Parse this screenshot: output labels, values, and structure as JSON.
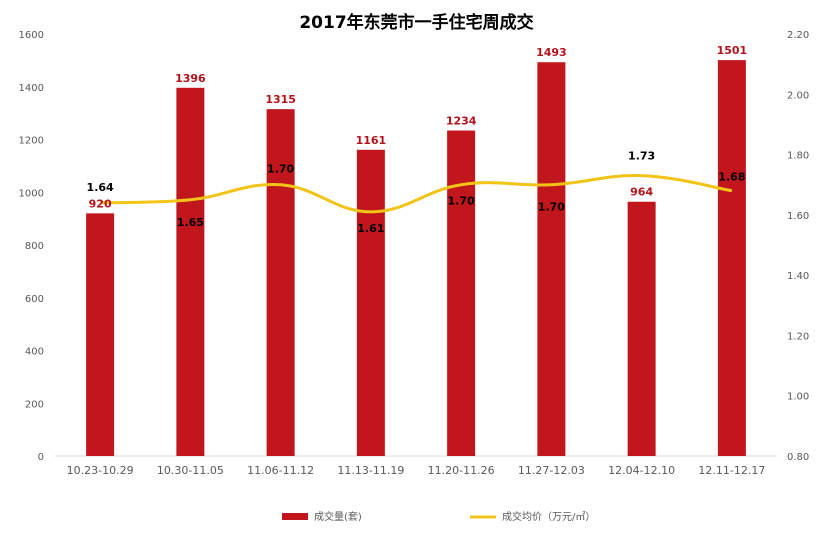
{
  "chart_data": {
    "type": "bar",
    "title": "2017年东莞市一手住宅周成交",
    "categories": [
      "10.23-10.29",
      "10.30-11.05",
      "11.06-11.12",
      "11.13-11.19",
      "11.20-11.26",
      "11.27-12.03",
      "12.04-12.10",
      "12.11-12.17"
    ],
    "series": [
      {
        "name": "成交量(套)",
        "type": "bar",
        "axis": "left",
        "color": "#c0161c",
        "values": [
          920,
          1396,
          1315,
          1161,
          1234,
          1493,
          964,
          1501
        ]
      },
      {
        "name": "成交均价（万元/㎡）",
        "type": "line",
        "axis": "right",
        "color": "#f2c418",
        "values": [
          1.64,
          1.65,
          1.7,
          1.61,
          1.7,
          1.7,
          1.73,
          1.68
        ]
      }
    ],
    "left_axis": {
      "ylim": [
        0,
        1600
      ],
      "ticks": [
        "0",
        "200",
        "400",
        "600",
        "800",
        "1000",
        "1200",
        "1400",
        "1600"
      ]
    },
    "right_axis": {
      "ylim": [
        0.8,
        2.2
      ],
      "ticks": [
        "0.80",
        "1.00",
        "1.20",
        "1.40",
        "1.60",
        "1.80",
        "2.00",
        "2.20"
      ]
    },
    "bar_labels": [
      "920",
      "1396",
      "1315",
      "1161",
      "1234",
      "1493",
      "964",
      "1501"
    ],
    "line_labels": [
      "1.64",
      "1.65",
      "1.70",
      "1.61",
      "1.70",
      "1.70",
      "1.73",
      "1.68"
    ],
    "legend_position": "bottom",
    "grid": false,
    "colors": {
      "bar": "#c0161c",
      "bar_label": "#b2131b",
      "line": "#f2c418",
      "line_label": "#000000",
      "axis_text": "#595959"
    }
  }
}
